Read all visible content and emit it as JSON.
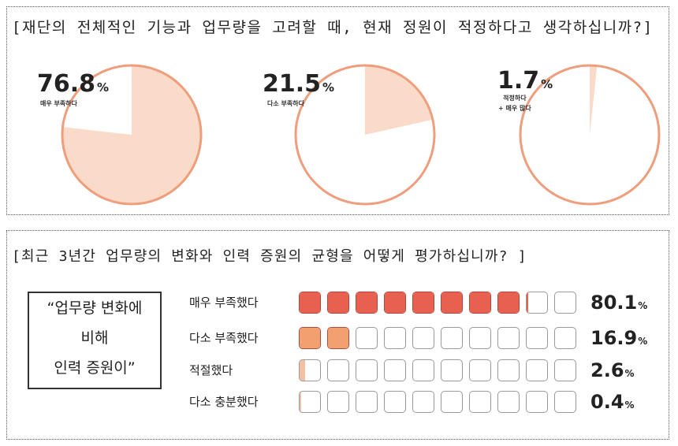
{
  "chart_data": [
    {
      "type": "pie",
      "title": "[재단의 전체적인 기능과 업무량을 고려할 때, 현재 정원이 적정하다고 생각하십니까?]",
      "colors": {
        "fill": "#fadbc9",
        "stroke": "#ee9e7d"
      },
      "slices": [
        {
          "value": 76.8,
          "value_text": "76.8",
          "unit": "%",
          "label_lines": [
            "매우 부족하다"
          ]
        },
        {
          "value": 21.5,
          "value_text": "21.5",
          "unit": "%",
          "label_lines": [
            "다소 부족하다"
          ]
        },
        {
          "value": 1.7,
          "value_text": "1.7",
          "unit": "%",
          "label_lines": [
            "적정하다",
            "+ 매우 많다"
          ]
        }
      ]
    },
    {
      "type": "bar",
      "title": "[최근 3년간 업무량의 변화와 인력 증원의 균형을 어떻게 평가하십니까? ]",
      "quote_lines": [
        "“업무량 변화에",
        "비해",
        "인력 증원이”"
      ],
      "box_count": 10,
      "unit": "%",
      "categories": [
        "매우 부족했다",
        "다소 부족했다",
        "적절했다",
        "다소 충분했다"
      ],
      "values": [
        80.1,
        16.9,
        2.6,
        0.4
      ],
      "value_texts": [
        "80.1",
        "16.9",
        "2.6",
        "0.4"
      ],
      "colors": [
        "#e8604f",
        "#f2a070",
        "#f4c0a4",
        "#ecc2ac"
      ]
    }
  ]
}
